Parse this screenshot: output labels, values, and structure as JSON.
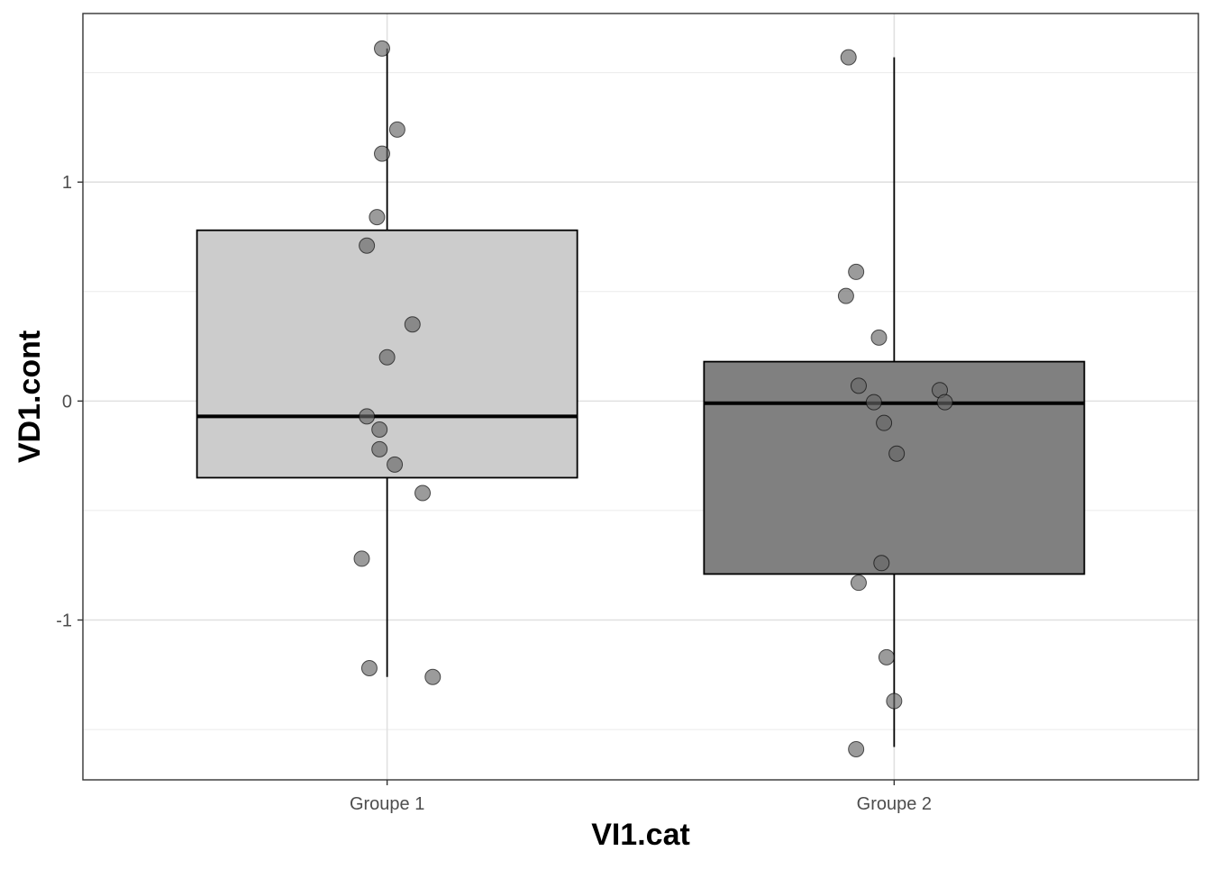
{
  "chart_data": {
    "type": "boxplot",
    "title": "",
    "xlabel": "VI1.cat",
    "ylabel": "VD1.cont",
    "categories": [
      "Groupe 1",
      "Groupe 2"
    ],
    "ylim": [
      -1.73,
      1.77
    ],
    "y_ticks": [
      -1,
      0,
      1
    ],
    "y_tick_labels": [
      "-1",
      "0",
      "1"
    ],
    "grid": true,
    "legend": "none",
    "boxes": [
      {
        "category": "Groupe 1",
        "whisker_low": -1.26,
        "q1": -0.35,
        "median": -0.07,
        "q3": 0.78,
        "whisker_high": 1.61,
        "fill": "#cccccc"
      },
      {
        "category": "Groupe 2",
        "whisker_low": -1.58,
        "q1": -0.79,
        "median": -0.01,
        "q3": 0.18,
        "whisker_high": 1.57,
        "fill": "#808080"
      }
    ],
    "points": [
      {
        "category": "Groupe 1",
        "values": [
          1.61,
          1.24,
          1.13,
          0.84,
          0.71,
          0.35,
          0.2,
          -0.07,
          -0.13,
          -0.22,
          -0.29,
          -0.42,
          -0.72,
          -1.22,
          -1.26
        ],
        "jitter": [
          -0.01,
          0.02,
          -0.01,
          -0.02,
          -0.04,
          0.05,
          0.0,
          -0.04,
          -0.015,
          -0.015,
          0.015,
          0.07,
          -0.05,
          -0.035,
          0.09
        ]
      },
      {
        "category": "Groupe 2",
        "values": [
          1.57,
          0.59,
          0.48,
          0.29,
          0.07,
          0.05,
          -0.005,
          -0.005,
          -0.1,
          -0.24,
          -0.74,
          -0.83,
          -1.17,
          -1.37,
          -1.59
        ],
        "jitter": [
          -0.09,
          -0.075,
          -0.095,
          -0.03,
          -0.07,
          0.09,
          -0.04,
          0.1,
          -0.02,
          0.005,
          -0.025,
          -0.07,
          -0.015,
          0.0,
          -0.075
        ]
      }
    ],
    "point_color": "#666666"
  }
}
